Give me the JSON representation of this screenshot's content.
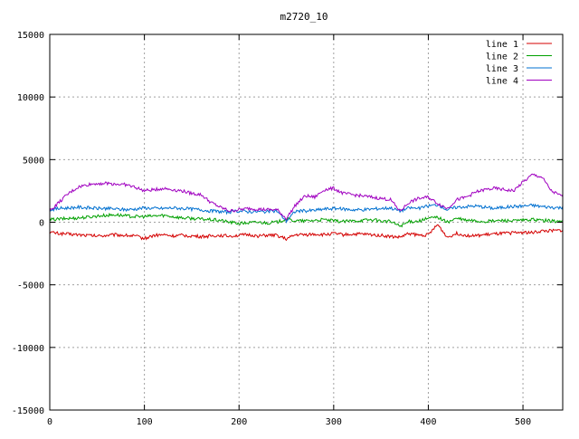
{
  "chart_data": {
    "type": "line",
    "title": "m2720_10",
    "xlabel": "",
    "ylabel": "",
    "xlim": [
      0,
      542
    ],
    "ylim": [
      -15000,
      15000
    ],
    "xticks": [
      0,
      100,
      200,
      300,
      400,
      500
    ],
    "yticks": [
      -15000,
      -10000,
      -5000,
      0,
      5000,
      10000,
      15000
    ],
    "grid": true,
    "legend_position": "top-right",
    "x_step": 10,
    "series": [
      {
        "name": "line 1",
        "color": "#d40000",
        "values": [
          -800,
          -900,
          -950,
          -1000,
          -1050,
          -1100,
          -1050,
          -1000,
          -1050,
          -1100,
          -1300,
          -1050,
          -1000,
          -1100,
          -1050,
          -1100,
          -1150,
          -1100,
          -1050,
          -1100,
          -1050,
          -1000,
          -1100,
          -1050,
          -1050,
          -1350,
          -1000,
          -1000,
          -950,
          -1000,
          -900,
          -1000,
          -950,
          -950,
          -1000,
          -1050,
          -1150,
          -1200,
          -900,
          -1050,
          -1000,
          -200,
          -1200,
          -900,
          -1050,
          -1100,
          -1000,
          -950,
          -900,
          -850,
          -800,
          -850,
          -700,
          -700,
          -650
        ]
      },
      {
        "name": "line 2",
        "color": "#00a000",
        "values": [
          200,
          250,
          300,
          350,
          400,
          500,
          550,
          600,
          500,
          450,
          450,
          500,
          550,
          450,
          350,
          300,
          250,
          200,
          150,
          0,
          -100,
          -50,
          0,
          -50,
          0,
          250,
          100,
          100,
          150,
          200,
          100,
          50,
          100,
          150,
          200,
          100,
          50,
          -300,
          50,
          100,
          300,
          400,
          0,
          300,
          150,
          100,
          50,
          100,
          150,
          100,
          150,
          200,
          150,
          100,
          50
        ]
      },
      {
        "name": "line 3",
        "color": "#0070d0",
        "values": [
          1000,
          1100,
          1150,
          1200,
          1150,
          1100,
          1100,
          1050,
          1000,
          1050,
          1150,
          1100,
          1100,
          1150,
          1100,
          1050,
          1000,
          900,
          850,
          800,
          900,
          850,
          850,
          850,
          900,
          100,
          900,
          900,
          950,
          1050,
          1100,
          1050,
          1000,
          1000,
          1050,
          1100,
          1150,
          900,
          1150,
          1100,
          1300,
          1400,
          1000,
          1200,
          1250,
          1300,
          1200,
          1100,
          1200,
          1250,
          1300,
          1350,
          1250,
          1200,
          1150
        ]
      },
      {
        "name": "line 4",
        "color": "#a000c0",
        "values": [
          900,
          1600,
          2300,
          2800,
          3000,
          3100,
          3100,
          3050,
          3000,
          2800,
          2500,
          2600,
          2700,
          2600,
          2500,
          2300,
          2200,
          1600,
          1200,
          900,
          1000,
          1100,
          1050,
          1000,
          1000,
          300,
          1400,
          2100,
          2000,
          2600,
          2700,
          2300,
          2200,
          2100,
          2000,
          1900,
          1800,
          900,
          1600,
          1900,
          2000,
          1500,
          1100,
          1800,
          2000,
          2400,
          2600,
          2700,
          2600,
          2500,
          3200,
          3800,
          3600,
          2500,
          2100
        ]
      }
    ]
  }
}
